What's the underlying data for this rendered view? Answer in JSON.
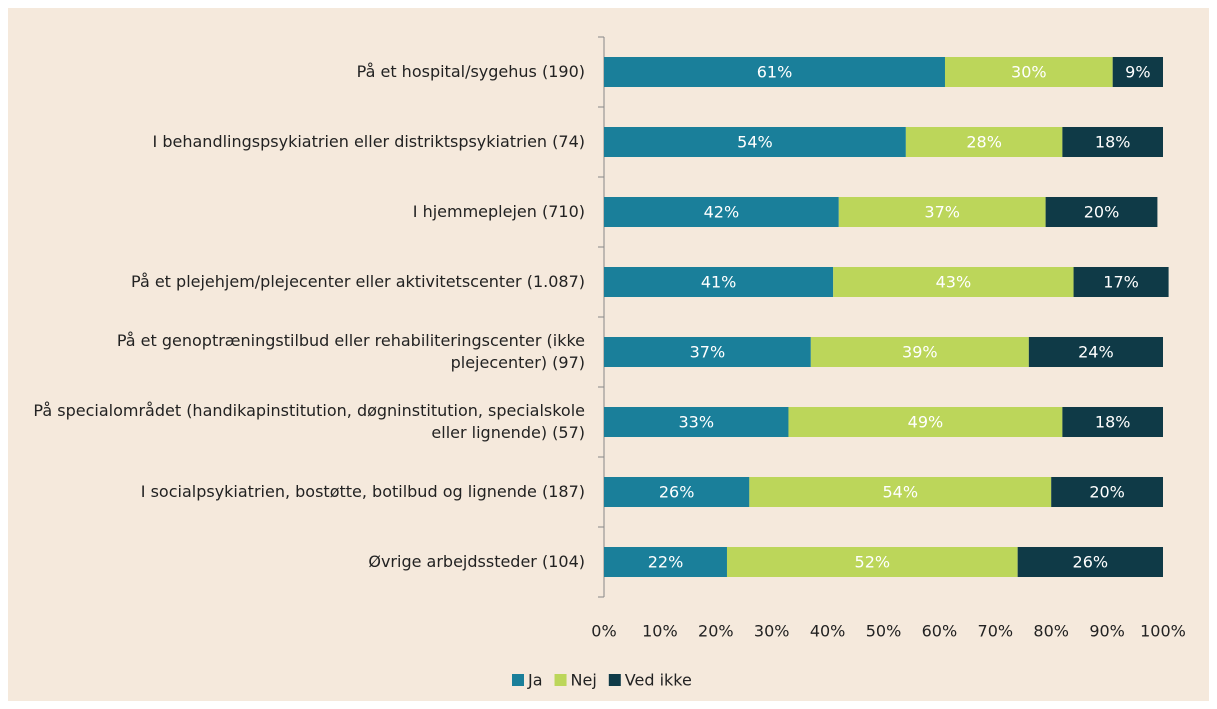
{
  "chart_data": {
    "type": "stacked_barh",
    "categories": [
      "På et hospital/sygehus (190)",
      "I behandlingspsykiatrien eller distriktspsykiatrien (74)",
      "I hjemmeplejen (710)",
      "På et plejehjem/plejecenter eller aktivitetscenter (1.087)",
      "På et genoptræningstilbud eller rehabiliteringscenter (ikke plejecenter) (97)",
      "På specialområdet (handikapinstitution, døgninstitution, specialskole eller lignende) (57)",
      "I socialpsykiatrien, bostøtte, botilbud og lignende (187)",
      "Øvrige arbejdssteder (104)"
    ],
    "series": [
      {
        "name": "Ja",
        "color": "#1a7f9a",
        "values": [
          61,
          54,
          42,
          41,
          37,
          33,
          26,
          22
        ],
        "value_labels": [
          "61%",
          "54%",
          "42%",
          "41%",
          "37%",
          "33%",
          "26%",
          "22%"
        ]
      },
      {
        "name": "Nej",
        "color": "#bcd65a",
        "values": [
          30,
          28,
          37,
          43,
          39,
          49,
          54,
          52
        ],
        "value_labels": [
          "30%",
          "28%",
          "37%",
          "43%",
          "39%",
          "49%",
          "54%",
          "52%"
        ]
      },
      {
        "name": "Ved ikke",
        "color": "#0f3a47",
        "values": [
          9,
          18,
          20,
          17,
          24,
          18,
          20,
          26
        ],
        "value_labels": [
          "9%",
          "18%",
          "20%",
          "17%",
          "24%",
          "18%",
          "20%",
          "26%"
        ]
      }
    ],
    "xlim": [
      0,
      100
    ],
    "xticks": [
      {
        "value": 0,
        "label": "0%"
      },
      {
        "value": 10,
        "label": "10%"
      },
      {
        "value": 20,
        "label": "20%"
      },
      {
        "value": 30,
        "label": "30%"
      },
      {
        "value": 40,
        "label": "40%"
      },
      {
        "value": 50,
        "label": "50%"
      },
      {
        "value": 60,
        "label": "60%"
      },
      {
        "value": 70,
        "label": "70%"
      },
      {
        "value": 80,
        "label": "80%"
      },
      {
        "value": 90,
        "label": "90%"
      },
      {
        "value": 100,
        "label": "100%"
      }
    ],
    "legend": "bottom"
  }
}
